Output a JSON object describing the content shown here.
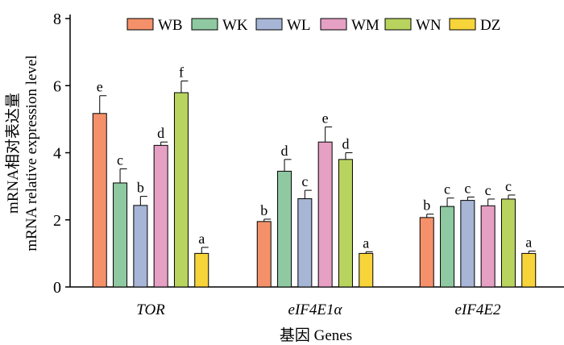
{
  "chart_data": {
    "type": "bar",
    "categories": [
      "TOR",
      "eIF4E1α",
      "eIF4E2"
    ],
    "xlabel": "基因 Genes",
    "ylabel_cn": "mRNA相对表达量",
    "ylabel_en": "mRNA relative expression level",
    "ylim": [
      0,
      8
    ],
    "yticks": [
      0,
      2,
      4,
      6,
      8
    ],
    "legend_position": "top",
    "grid": false,
    "series": [
      {
        "name": "WB",
        "color": "#F4916A",
        "values": [
          5.17,
          1.95,
          2.07
        ],
        "errors": [
          0.53,
          0.07,
          0.1
        ],
        "sig": [
          "e",
          "b",
          "b"
        ]
      },
      {
        "name": "WK",
        "color": "#8FC9A1",
        "values": [
          3.1,
          3.45,
          2.4
        ],
        "errors": [
          0.42,
          0.35,
          0.25
        ],
        "sig": [
          "c",
          "d",
          "c"
        ]
      },
      {
        "name": "WL",
        "color": "#A7B5D6",
        "values": [
          2.43,
          2.63,
          2.58
        ],
        "errors": [
          0.27,
          0.25,
          0.1
        ],
        "sig": [
          "b",
          "c",
          "c"
        ]
      },
      {
        "name": "WM",
        "color": "#E5A0C4",
        "values": [
          4.22,
          4.32,
          2.42
        ],
        "errors": [
          0.1,
          0.45,
          0.2
        ],
        "sig": [
          "d",
          "e",
          "c"
        ]
      },
      {
        "name": "WN",
        "color": "#B9D45E",
        "values": [
          5.79,
          3.8,
          2.62
        ],
        "errors": [
          0.35,
          0.2,
          0.12
        ],
        "sig": [
          "f",
          "d",
          "c"
        ]
      },
      {
        "name": "DZ",
        "color": "#F7D43A",
        "values": [
          1.0,
          1.0,
          1.0
        ],
        "errors": [
          0.18,
          0.05,
          0.07
        ],
        "sig": [
          "a",
          "a",
          "a"
        ]
      }
    ]
  }
}
